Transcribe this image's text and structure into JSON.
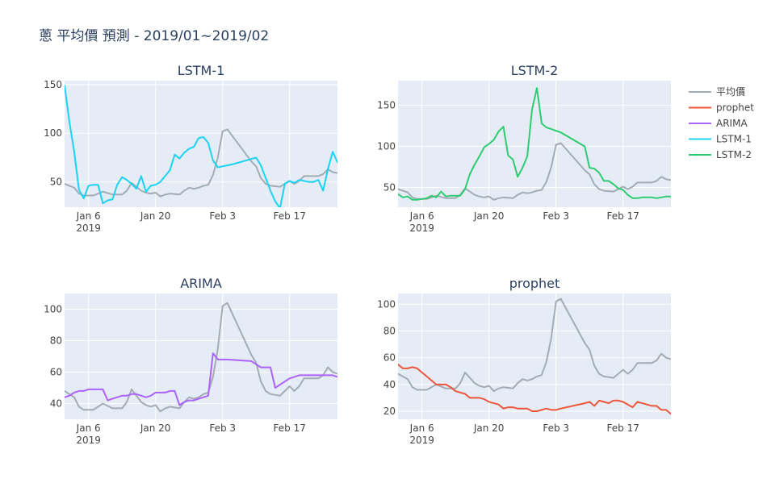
{
  "title": "蔥 平均價 預測 - 2019/01~2019/02",
  "legend": {
    "placement": "right",
    "entries": [
      {
        "name": "平均價",
        "color": "#a3acb4"
      },
      {
        "name": "prophet",
        "color": "#ef553b"
      },
      {
        "name": "ARIMA",
        "color": "#ab63fa"
      },
      {
        "name": "LSTM-1",
        "color": "#19d3f3"
      },
      {
        "name": "LSTM-2",
        "color": "#2ecc71"
      }
    ]
  },
  "colors": {
    "plot_bg": "#e5ecf6",
    "grid": "#ffffff",
    "tick_text": "#444444",
    "title_text": "#2a3f5f"
  },
  "chart_data": [
    {
      "type": "line",
      "title": "LSTM-1",
      "xticks": [
        {
          "day": 6,
          "label": "Jan 6",
          "sub": "2019"
        },
        {
          "day": 20,
          "label": "Jan 20"
        },
        {
          "day": 34,
          "label": "Feb 3"
        },
        {
          "day": 48,
          "label": "Feb 17"
        }
      ],
      "yticks": [
        50,
        100,
        150
      ],
      "ylim": [
        24,
        154
      ],
      "xlim": [
        1,
        58
      ],
      "grid": true,
      "series": [
        {
          "name": "平均價",
          "color": "#a3acb4",
          "x": [
            1,
            3,
            4,
            5,
            7,
            9,
            11,
            13,
            14,
            15,
            17,
            18,
            19,
            20,
            21,
            22,
            23,
            25,
            26,
            27,
            28,
            29,
            30,
            31,
            32,
            33,
            34,
            35,
            40,
            41,
            42,
            43,
            44,
            46,
            47,
            48,
            49,
            50,
            51,
            52,
            53,
            54,
            55,
            56,
            57,
            58
          ],
          "y": [
            48,
            44,
            38,
            36,
            36,
            40,
            37,
            37,
            41,
            49,
            41,
            39,
            38,
            39,
            35,
            37,
            38,
            37,
            41,
            44,
            43,
            44,
            46,
            47,
            57,
            75,
            102,
            104,
            71,
            66,
            54,
            48,
            46,
            45,
            48,
            51,
            48,
            51,
            56,
            56,
            56,
            56,
            58,
            63,
            60,
            59
          ]
        },
        {
          "name": "LSTM-1",
          "color": "#19d3f3",
          "x": [
            1,
            2,
            3,
            4,
            5,
            6,
            7,
            8,
            9,
            10,
            11,
            12,
            13,
            14,
            15,
            16,
            17,
            18,
            19,
            20,
            21,
            22,
            23,
            24,
            25,
            26,
            27,
            28,
            29,
            30,
            31,
            32,
            33,
            34,
            35,
            36,
            41,
            42,
            43,
            44,
            45,
            46,
            47,
            48,
            49,
            50,
            51,
            52,
            53,
            54,
            55,
            56,
            57,
            58
          ],
          "y": [
            149,
            112,
            81,
            42,
            33,
            46,
            47,
            47,
            28,
            31,
            32,
            47,
            55,
            52,
            48,
            43,
            56,
            40,
            46,
            47,
            50,
            56,
            62,
            78,
            74,
            80,
            84,
            86,
            95,
            96,
            90,
            72,
            65,
            66,
            67,
            68,
            75,
            67,
            54,
            41,
            30,
            23,
            48,
            51,
            49,
            52,
            51,
            50,
            50,
            52,
            41,
            63,
            81,
            70
          ]
        }
      ]
    },
    {
      "type": "line",
      "title": "LSTM-2",
      "xticks": [
        {
          "day": 6,
          "label": "Jan 6",
          "sub": "2019"
        },
        {
          "day": 20,
          "label": "Jan 20"
        },
        {
          "day": 34,
          "label": "Feb 3"
        },
        {
          "day": 48,
          "label": "Feb 17"
        }
      ],
      "yticks": [
        50,
        100,
        150
      ],
      "ylim": [
        26,
        180
      ],
      "xlim": [
        1,
        58
      ],
      "grid": true,
      "series": [
        {
          "name": "平均價",
          "color": "#a3acb4",
          "x": [
            1,
            3,
            4,
            5,
            7,
            9,
            11,
            13,
            14,
            15,
            17,
            18,
            19,
            20,
            21,
            22,
            23,
            25,
            26,
            27,
            28,
            29,
            30,
            31,
            32,
            33,
            34,
            35,
            40,
            41,
            42,
            43,
            44,
            46,
            47,
            48,
            49,
            50,
            51,
            52,
            53,
            54,
            55,
            56,
            57,
            58
          ],
          "y": [
            48,
            44,
            38,
            36,
            36,
            40,
            37,
            37,
            41,
            49,
            41,
            39,
            38,
            39,
            35,
            37,
            38,
            37,
            41,
            44,
            43,
            44,
            46,
            47,
            57,
            75,
            102,
            104,
            71,
            66,
            54,
            48,
            46,
            45,
            48,
            51,
            48,
            51,
            56,
            56,
            56,
            56,
            58,
            63,
            60,
            59
          ]
        },
        {
          "name": "LSTM-2",
          "color": "#2ecc71",
          "x": [
            1,
            2,
            3,
            4,
            5,
            6,
            7,
            8,
            9,
            10,
            11,
            12,
            13,
            14,
            15,
            16,
            17,
            18,
            19,
            20,
            21,
            22,
            23,
            24,
            25,
            26,
            27,
            28,
            29,
            30,
            31,
            32,
            33,
            34,
            35,
            40,
            41,
            42,
            43,
            44,
            45,
            46,
            47,
            48,
            49,
            50,
            51,
            52,
            53,
            54,
            55,
            56,
            57,
            58
          ],
          "y": [
            42,
            38,
            39,
            35,
            35,
            36,
            37,
            40,
            38,
            45,
            39,
            40,
            40,
            40,
            48,
            66,
            78,
            88,
            99,
            103,
            108,
            118,
            124,
            89,
            84,
            63,
            74,
            88,
            145,
            171,
            128,
            123,
            121,
            119,
            117,
            100,
            74,
            73,
            68,
            58,
            58,
            54,
            49,
            47,
            41,
            37,
            37,
            38,
            38,
            38,
            37,
            38,
            39,
            39
          ]
        }
      ]
    },
    {
      "type": "line",
      "title": "ARIMA",
      "xticks": [
        {
          "day": 6,
          "label": "Jan 6",
          "sub": "2019"
        },
        {
          "day": 20,
          "label": "Jan 20"
        },
        {
          "day": 34,
          "label": "Feb 3"
        },
        {
          "day": 48,
          "label": "Feb 17"
        }
      ],
      "yticks": [
        40,
        60,
        80,
        100
      ],
      "ylim": [
        30,
        110
      ],
      "xlim": [
        1,
        58
      ],
      "grid": true,
      "series": [
        {
          "name": "平均價",
          "color": "#a3acb4",
          "x": [
            1,
            3,
            4,
            5,
            7,
            9,
            11,
            13,
            14,
            15,
            17,
            18,
            19,
            20,
            21,
            22,
            23,
            25,
            26,
            27,
            28,
            29,
            30,
            31,
            32,
            33,
            34,
            35,
            40,
            41,
            42,
            43,
            44,
            46,
            47,
            48,
            49,
            50,
            51,
            52,
            53,
            54,
            55,
            56,
            57,
            58
          ],
          "y": [
            48,
            44,
            38,
            36,
            36,
            40,
            37,
            37,
            41,
            49,
            41,
            39,
            38,
            39,
            35,
            37,
            38,
            37,
            41,
            44,
            43,
            44,
            46,
            47,
            57,
            75,
            102,
            104,
            71,
            66,
            54,
            48,
            46,
            45,
            48,
            51,
            48,
            51,
            56,
            56,
            56,
            56,
            58,
            63,
            60,
            59
          ]
        },
        {
          "name": "ARIMA",
          "color": "#ab63fa",
          "x": [
            1,
            2,
            3,
            4,
            5,
            6,
            7,
            8,
            9,
            10,
            11,
            12,
            13,
            14,
            15,
            16,
            17,
            18,
            19,
            20,
            21,
            22,
            23,
            24,
            25,
            26,
            27,
            28,
            29,
            30,
            31,
            32,
            33,
            34,
            35,
            40,
            41,
            42,
            43,
            44,
            45,
            46,
            47,
            48,
            49,
            50,
            51,
            52,
            53,
            54,
            55,
            56,
            57,
            58
          ],
          "y": [
            44,
            45,
            47,
            48,
            48,
            49,
            49,
            49,
            49,
            42,
            43,
            44,
            45,
            45,
            46,
            46,
            45,
            44,
            45,
            47,
            47,
            47,
            48,
            48,
            39,
            41,
            42,
            42,
            43,
            44,
            45,
            72,
            68,
            68,
            68,
            67,
            65,
            63,
            63,
            63,
            50,
            52,
            54,
            56,
            57,
            58,
            58,
            58,
            58,
            58,
            58,
            58,
            58,
            57
          ]
        }
      ]
    },
    {
      "type": "line",
      "title": "prophet",
      "xticks": [
        {
          "day": 6,
          "label": "Jan 6",
          "sub": "2019"
        },
        {
          "day": 20,
          "label": "Jan 20"
        },
        {
          "day": 34,
          "label": "Feb 3"
        },
        {
          "day": 48,
          "label": "Feb 17"
        }
      ],
      "yticks": [
        20,
        40,
        60,
        80,
        100
      ],
      "ylim": [
        14,
        108
      ],
      "xlim": [
        1,
        58
      ],
      "grid": true,
      "series": [
        {
          "name": "平均價",
          "color": "#a3acb4",
          "x": [
            1,
            3,
            4,
            5,
            7,
            9,
            11,
            13,
            14,
            15,
            17,
            18,
            19,
            20,
            21,
            22,
            23,
            25,
            26,
            27,
            28,
            29,
            30,
            31,
            32,
            33,
            34,
            35,
            40,
            41,
            42,
            43,
            44,
            46,
            47,
            48,
            49,
            50,
            51,
            52,
            53,
            54,
            55,
            56,
            57,
            58
          ],
          "y": [
            48,
            44,
            38,
            36,
            36,
            40,
            37,
            37,
            41,
            49,
            41,
            39,
            38,
            39,
            35,
            37,
            38,
            37,
            41,
            44,
            43,
            44,
            46,
            47,
            57,
            75,
            102,
            104,
            71,
            66,
            54,
            48,
            46,
            45,
            48,
            51,
            48,
            51,
            56,
            56,
            56,
            56,
            58,
            63,
            60,
            59
          ]
        },
        {
          "name": "prophet",
          "color": "#ef553b",
          "x": [
            1,
            2,
            3,
            4,
            5,
            6,
            7,
            8,
            9,
            10,
            11,
            12,
            13,
            14,
            15,
            16,
            17,
            18,
            19,
            20,
            21,
            22,
            23,
            24,
            25,
            26,
            27,
            28,
            29,
            30,
            31,
            32,
            33,
            34,
            35,
            40,
            41,
            42,
            43,
            44,
            45,
            46,
            47,
            48,
            49,
            50,
            51,
            52,
            53,
            54,
            55,
            56,
            57,
            58
          ],
          "y": [
            55,
            52,
            52,
            53,
            52,
            49,
            46,
            43,
            40,
            40,
            40,
            38,
            35,
            34,
            33,
            30,
            30,
            30,
            29,
            27,
            26,
            25,
            22,
            23,
            23,
            22,
            22,
            22,
            20,
            20,
            21,
            22,
            21,
            21,
            22,
            26,
            27,
            24,
            28,
            27,
            26,
            28,
            28,
            27,
            25,
            23,
            27,
            26,
            25,
            24,
            24,
            21,
            21,
            18
          ]
        }
      ]
    }
  ]
}
